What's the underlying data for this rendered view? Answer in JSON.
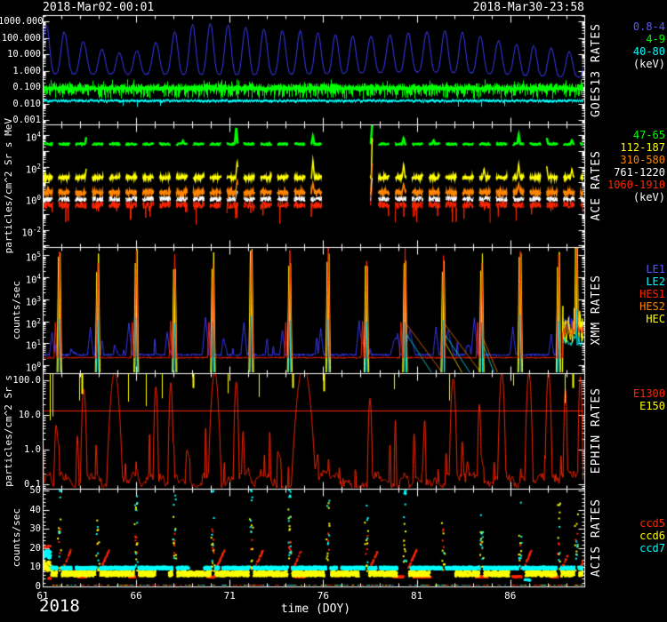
{
  "header": {
    "start_datetime": "2018-Mar02-00:01",
    "end_datetime": "2018-Mar30-23:58"
  },
  "colors": {
    "background": "#000000",
    "axis": "#ffffff",
    "blue": "#3c3cff",
    "green": "#00ff00",
    "cyan": "#00ffff",
    "yellow": "#ffff00",
    "orange": "#ff8400",
    "red": "#ff2600",
    "white": "#ffffff"
  },
  "chart_data": {
    "type": "line",
    "x": {
      "label": "time (DOY)",
      "year": "2018",
      "start": 61.0,
      "end": 89.96,
      "major_ticks": [
        61,
        66,
        71,
        76,
        81,
        86
      ],
      "minor_step_days": 1
    },
    "orbit_spike_doys": [
      61.9,
      63.95,
      66.01,
      68.06,
      70.11,
      72.16,
      74.22,
      76.27,
      78.32,
      80.38,
      82.43,
      84.48,
      86.54,
      88.59,
      89.55
    ],
    "panels": [
      {
        "id": "goes13",
        "side_title": "GOES13 RATES",
        "y_title": "",
        "scale": "log",
        "y_top": 2400,
        "y_bottom": 0.00057,
        "y_ticks": [
          {
            "v": 1000,
            "label": "1000.000"
          },
          {
            "v": 100,
            "label": "100.000"
          },
          {
            "v": 10,
            "label": "10.000"
          },
          {
            "v": 1,
            "label": "1.000"
          },
          {
            "v": 0.1,
            "label": "0.100"
          },
          {
            "v": 0.01,
            "label": "0.010"
          },
          {
            "v": 0.001,
            "label": "0.001"
          }
        ],
        "legend": [
          {
            "label": "0.8-4",
            "color": "#5858ff"
          },
          {
            "label": "4-9",
            "color": "#00ff00"
          },
          {
            "label": "40-80",
            "color": "#00ffff"
          },
          {
            "label": "(keV)",
            "color": "#ffffff"
          }
        ],
        "series": [
          {
            "name": "0.8-4",
            "color": "#3c3cff",
            "role": "goes-osc",
            "period_days": 0.965,
            "base_log": -0.45,
            "env_min": 1.15,
            "env_amp": 2.0
          },
          {
            "name": "4-9",
            "color": "#00ff00",
            "role": "goes-band",
            "center": 0.1
          },
          {
            "name": "40-80",
            "color": "#00ffff",
            "role": "goes-line",
            "center": 0.016
          }
        ]
      },
      {
        "id": "ace",
        "side_title": "ACE RATES",
        "y_title": "particles/cm^2 Sr s MeV",
        "scale": "log",
        "y_top": 50000,
        "y_bottom": 0.0008,
        "segment_period_days": 0.9,
        "segment_on_days": 0.58,
        "data_gap": [
          75.92,
          78.52
        ],
        "y_ticks": [
          {
            "v": 10000,
            "base": "10",
            "exp": "4"
          },
          {
            "v": 100,
            "base": "10",
            "exp": "2"
          },
          {
            "v": 1,
            "base": "10",
            "exp": "0"
          },
          {
            "v": 0.01,
            "base": "10",
            "exp": "-2"
          }
        ],
        "legend": [
          {
            "label": "47-65",
            "color": "#00ff00"
          },
          {
            "label": "112-187",
            "color": "#ffff00"
          },
          {
            "label": "310-580",
            "color": "#ff8400"
          },
          {
            "label": "761-1220",
            "color": "#ffffff"
          },
          {
            "label": "1060-1910",
            "color": "#ff2600"
          },
          {
            "label": "(keV)",
            "color": "#ffffff"
          }
        ],
        "series": [
          {
            "name": "47-65",
            "color": "#00ff00",
            "lw": 2.5,
            "base_log": 3.45,
            "noise": 0.05,
            "spikes": [
              [
                63.35,
                4.05
              ],
              [
                66.2,
                3.85
              ],
              [
                68.5,
                3.65
              ],
              [
                71.35,
                4.5
              ],
              [
                71.65,
                4.25
              ],
              [
                73.3,
                3.6
              ],
              [
                75.45,
                3.95
              ],
              [
                78.62,
                4.72
              ],
              [
                80.3,
                3.85
              ],
              [
                81.9,
                3.7
              ],
              [
                83.2,
                3.8
              ],
              [
                85.1,
                3.65
              ],
              [
                86.45,
                4.05
              ],
              [
                87.95,
                3.85
              ],
              [
                89.3,
                3.7
              ]
            ]
          },
          {
            "name": "112-187",
            "color": "#ffff00",
            "lw": 1.5,
            "base_log": 1.32,
            "noise": 0.09,
            "spikes": [
              [
                63.35,
                2.1
              ],
              [
                66.2,
                1.95
              ],
              [
                71.4,
                2.35
              ],
              [
                71.65,
                2.2
              ],
              [
                75.45,
                2.45
              ],
              [
                78.62,
                4.05
              ],
              [
                80.3,
                2.2
              ],
              [
                83.2,
                2.1
              ],
              [
                84.6,
                1.9
              ],
              [
                86.45,
                2.2
              ],
              [
                87.95,
                2.05
              ],
              [
                89.3,
                1.9
              ]
            ]
          },
          {
            "name": "310-580",
            "color": "#ff8400",
            "lw": 1.5,
            "base_log": 0.38,
            "noise": 0.13,
            "spikes": [
              [
                71.4,
                1.15
              ],
              [
                75.45,
                1.0
              ],
              [
                78.62,
                2.3
              ],
              [
                80.3,
                0.95
              ],
              [
                86.45,
                0.95
              ]
            ]
          },
          {
            "name": "761-1220",
            "color": "#ffffff",
            "lw": 1,
            "base_log": -0.05,
            "noise": 0.17,
            "spikes": [
              [
                71.4,
                0.5
              ],
              [
                78.62,
                1.35
              ]
            ]
          },
          {
            "name": "1060-1910",
            "color": "#ff2600",
            "lw": 1,
            "base_log": -0.42,
            "noise": 0.22,
            "down_tails": true,
            "spikes": [
              [
                78.62,
                0.75
              ],
              [
                84.95,
                -2.3
              ],
              [
                89.62,
                -2.5
              ]
            ]
          }
        ]
      },
      {
        "id": "xmm",
        "side_title": "XMM RATES",
        "y_title": "counts/sec",
        "scale": "log",
        "y_top": 240000,
        "y_bottom": 0.43,
        "decay_after_doys": [
          80.38,
          82.43
        ],
        "short_decay_doy": 84.48,
        "elevated_end_start": 88.8,
        "y_ticks": [
          {
            "v": 100000,
            "base": "10",
            "exp": "5"
          },
          {
            "v": 10000,
            "base": "10",
            "exp": "4"
          },
          {
            "v": 1000,
            "base": "10",
            "exp": "3"
          },
          {
            "v": 100,
            "base": "10",
            "exp": "2"
          },
          {
            "v": 10,
            "base": "10",
            "exp": "1"
          },
          {
            "v": 1,
            "base": "10",
            "exp": "0"
          }
        ],
        "legend": [
          {
            "label": "LE1",
            "color": "#5858ff"
          },
          {
            "label": "LE2",
            "color": "#00ffff"
          },
          {
            "label": "HES1",
            "color": "#ff2600"
          },
          {
            "label": "HES2",
            "color": "#ff8400"
          },
          {
            "label": "HEC",
            "color": "#ffff00"
          }
        ],
        "series": [
          {
            "name": "LE1",
            "color": "#3c3cff",
            "role": "le1",
            "base_log": 0.47
          },
          {
            "name": "HES2",
            "color": "#ff8400",
            "role": "hes2",
            "base_log": -0.55
          },
          {
            "name": "LE2",
            "color": "#00ffff",
            "role": "le2",
            "base_log": -0.55
          },
          {
            "name": "HEC",
            "color": "#ffff00",
            "role": "hec",
            "base_log": -0.6
          },
          {
            "name": "HES1",
            "color": "#ff2600",
            "role": "hes1",
            "base_log": 0.34
          }
        ]
      },
      {
        "id": "ephin",
        "side_title": "EPHIN RATES",
        "y_title": "particles/cm^2 Sr s",
        "scale": "log",
        "y_top": 160,
        "y_bottom": 0.074,
        "threshold_line": 13,
        "y_ticks": [
          {
            "v": 100,
            "label": "100.0"
          },
          {
            "v": 10,
            "label": "10.0"
          },
          {
            "v": 1,
            "label": "1.0"
          },
          {
            "v": 0.1,
            "label": "0.1"
          }
        ],
        "legend": [
          {
            "label": "E1300",
            "color": "#ff2600"
          },
          {
            "label": "E150",
            "color": "#ffff00"
          }
        ],
        "series": [
          {
            "name": "E1300",
            "color": "#ff2600",
            "role": "ephin-red",
            "humps": [
              [
                63.2,
                55,
                0.16
              ],
              [
                64.85,
                170,
                0.34
              ],
              [
                67.05,
                65,
                0.13
              ],
              [
                67.85,
                85,
                0.13
              ],
              [
                70.2,
                170,
                0.28
              ],
              [
                71.35,
                90,
                0.14
              ],
              [
                74.95,
                260,
                0.5
              ],
              [
                78.5,
                30,
                0.13
              ],
              [
                82.95,
                110,
                0.18
              ],
              [
                84.35,
                20,
                0.11
              ],
              [
                85.55,
                170,
                0.18
              ],
              [
                87.0,
                170,
                0.18
              ],
              [
                88.05,
                170,
                0.16
              ],
              [
                88.95,
                55,
                0.11
              ],
              [
                89.75,
                130,
                0.12
              ]
            ]
          },
          {
            "name": "E150",
            "color": "#ffff00",
            "role": "ephin-yellow",
            "downspikes": [
              [
                61.38,
                7
              ],
              [
                61.52,
                9
              ],
              [
                62.95,
                26
              ],
              [
                63.1,
                40
              ],
              [
                65.55,
                24
              ],
              [
                66.5,
                18
              ],
              [
                67.35,
                30
              ],
              [
                69.05,
                60
              ],
              [
                70.9,
                42
              ],
              [
                72.55,
                33
              ],
              [
                74.35,
                60
              ],
              [
                76.05,
                48
              ],
              [
                79.78,
                55
              ],
              [
                82.72,
                26
              ],
              [
                86.15,
                70
              ],
              [
                88.92,
                22
              ],
              [
                89.35,
                60
              ]
            ]
          }
        ]
      },
      {
        "id": "acis",
        "side_title": "ACIS RATES",
        "y_title": "counts/sec",
        "scale": "linear",
        "y_top": 51,
        "y_bottom": 0,
        "y_ticks": [
          {
            "v": 50,
            "label": "50"
          },
          {
            "v": 40,
            "label": "40"
          },
          {
            "v": 30,
            "label": "30"
          },
          {
            "v": 20,
            "label": "20"
          },
          {
            "v": 10,
            "label": "10"
          },
          {
            "v": 0,
            "label": "0"
          }
        ],
        "legend": [
          {
            "label": "ccd5",
            "color": "#ff2600"
          },
          {
            "label": "ccd6",
            "color": "#ffff00"
          },
          {
            "label": "ccd7",
            "color": "#00ffff"
          }
        ],
        "series": [
          {
            "name": "ccd5",
            "color": "#ff2600",
            "role": "ccd5",
            "band": 5.0,
            "slant_lo": 9.5,
            "slant_hi": 19
          },
          {
            "name": "ccd6",
            "color": "#ffff00",
            "role": "ccd6",
            "band": 6.6,
            "spread": 2.8
          },
          {
            "name": "ccd7",
            "color": "#00ffff",
            "role": "ccd7",
            "band": 9.6,
            "spread": 1.6
          }
        ]
      }
    ]
  }
}
